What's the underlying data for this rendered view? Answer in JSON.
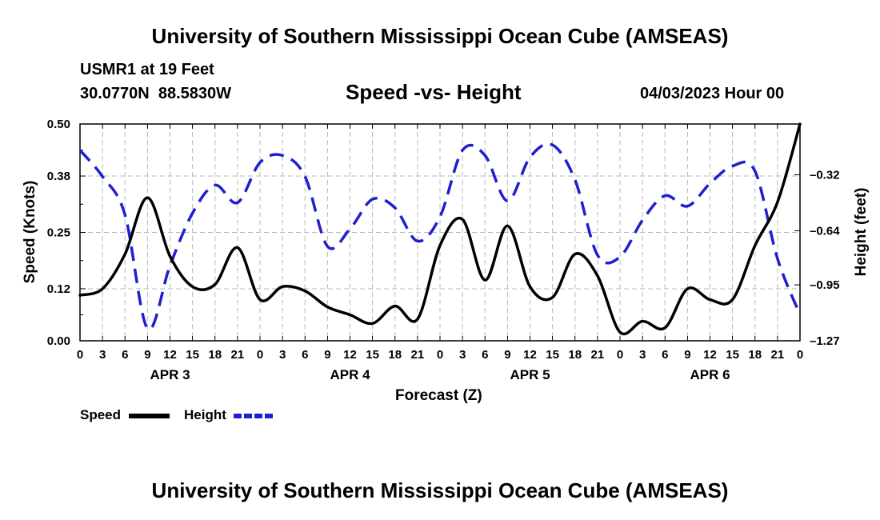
{
  "header": {
    "title": "University of Southern Mississippi Ocean Cube (AMSEAS)",
    "station": "USMR1 at 19 Feet",
    "coords": "30.0770N  88.5830W",
    "subtitle": "Speed -vs- Height",
    "datetime": "04/03/2023 Hour 00"
  },
  "footer": {
    "title": "University of Southern Mississippi Ocean Cube (AMSEAS)"
  },
  "chart_data": {
    "type": "line",
    "title": "Speed -vs- Height",
    "xlabel": "Forecast (Z)",
    "ylabel": "Speed (Knots)",
    "y2label": "Height (feet)",
    "ylim": [
      0,
      0.5
    ],
    "y2lim": [
      -1.27,
      -0.03
    ],
    "yticks": [
      "0.00",
      "0.12",
      "0.25",
      "0.38",
      "0.50"
    ],
    "y2ticks": [
      "-0.32",
      "-0.64",
      "-0.95",
      "-1.27"
    ],
    "x": [
      0,
      3,
      6,
      9,
      12,
      15,
      18,
      21,
      24,
      27,
      30,
      33,
      36,
      39,
      42,
      45,
      48,
      51,
      54,
      57,
      60,
      63,
      66,
      69,
      72,
      75,
      78,
      81,
      84,
      87,
      90,
      93,
      96
    ],
    "xticklabels": [
      "0",
      "3",
      "6",
      "9",
      "12",
      "15",
      "18",
      "21",
      "0",
      "3",
      "6",
      "9",
      "12",
      "15",
      "18",
      "21",
      "0",
      "3",
      "6",
      "9",
      "12",
      "15",
      "18",
      "21",
      "0",
      "3",
      "6",
      "9",
      "12",
      "15",
      "18",
      "21",
      "0"
    ],
    "days": [
      {
        "label": "APR 3",
        "hour": 12
      },
      {
        "label": "APR 4",
        "hour": 36
      },
      {
        "label": "APR 5",
        "hour": 60
      },
      {
        "label": "APR 6",
        "hour": 84
      }
    ],
    "grid": true,
    "legend_position": "bottom-left",
    "series": [
      {
        "name": "Speed",
        "axis": "left",
        "color": "#000000",
        "style": "solid",
        "values": [
          0.105,
          0.12,
          0.2,
          0.33,
          0.195,
          0.125,
          0.13,
          0.215,
          0.095,
          0.125,
          0.115,
          0.078,
          0.06,
          0.04,
          0.08,
          0.05,
          0.22,
          0.28,
          0.14,
          0.265,
          0.125,
          0.1,
          0.2,
          0.15,
          0.02,
          0.045,
          0.03,
          0.12,
          0.095,
          0.095,
          0.22,
          0.32,
          0.5
        ]
      },
      {
        "name": "Height",
        "axis": "right",
        "color": "#1f1fd0",
        "style": "dashed",
        "values": [
          -0.18,
          -0.33,
          -0.55,
          -1.2,
          -0.84,
          -0.54,
          -0.38,
          -0.48,
          -0.25,
          -0.21,
          -0.33,
          -0.73,
          -0.63,
          -0.46,
          -0.51,
          -0.7,
          -0.56,
          -0.18,
          -0.21,
          -0.47,
          -0.22,
          -0.15,
          -0.35,
          -0.78,
          -0.79,
          -0.58,
          -0.44,
          -0.5,
          -0.37,
          -0.27,
          -0.3,
          -0.8,
          -1.12
        ]
      }
    ]
  }
}
